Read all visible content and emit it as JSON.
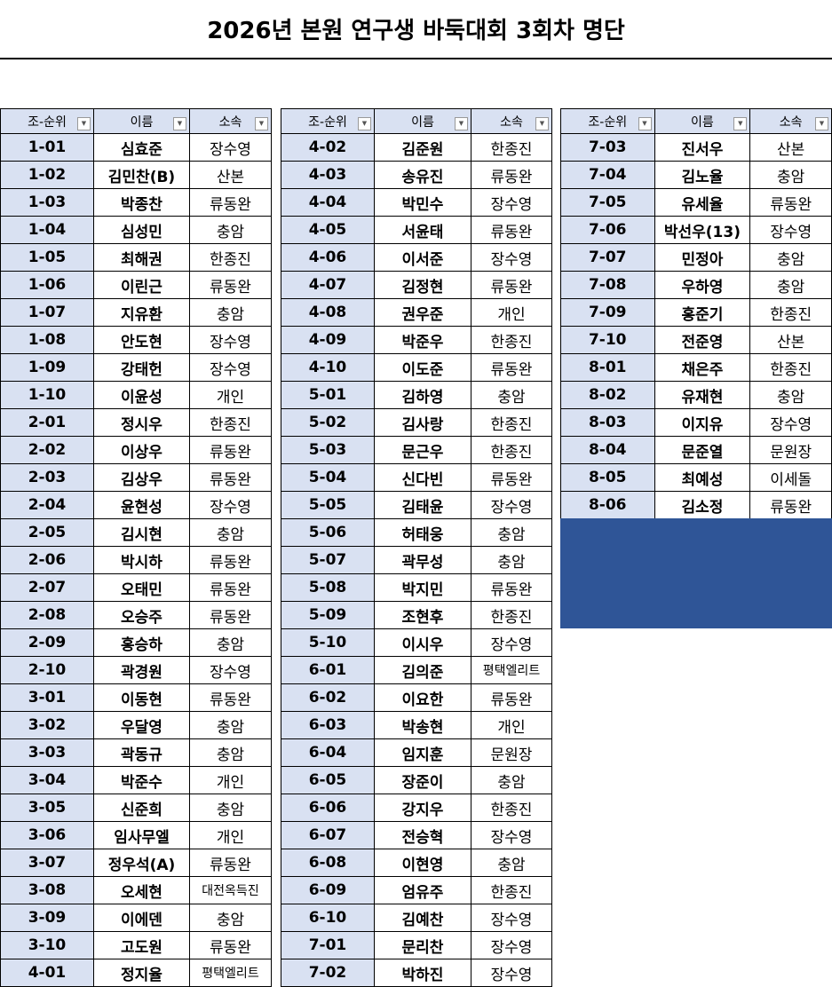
{
  "title": "2026년 본원 연구생 바둑대회 3회차 명단",
  "headers": [
    "조-순위",
    "이름",
    "소속"
  ],
  "filter_icon": "dropdown-arrow-icon",
  "colors": {
    "header_bg": "#d9e1f2",
    "block": "#2f5597"
  },
  "tables": [
    [
      [
        "1-01",
        "심효준",
        "장수영"
      ],
      [
        "1-02",
        "김민찬(B)",
        "산본"
      ],
      [
        "1-03",
        "박종찬",
        "류동완"
      ],
      [
        "1-04",
        "심성민",
        "충암"
      ],
      [
        "1-05",
        "최해권",
        "한종진"
      ],
      [
        "1-06",
        "이린근",
        "류동완"
      ],
      [
        "1-07",
        "지유환",
        "충암"
      ],
      [
        "1-08",
        "안도현",
        "장수영"
      ],
      [
        "1-09",
        "강태헌",
        "장수영"
      ],
      [
        "1-10",
        "이윤성",
        "개인"
      ],
      [
        "2-01",
        "정시우",
        "한종진"
      ],
      [
        "2-02",
        "이상우",
        "류동완"
      ],
      [
        "2-03",
        "김상우",
        "류동완"
      ],
      [
        "2-04",
        "윤현성",
        "장수영"
      ],
      [
        "2-05",
        "김시현",
        "충암"
      ],
      [
        "2-06",
        "박시하",
        "류동완"
      ],
      [
        "2-07",
        "오태민",
        "류동완"
      ],
      [
        "2-08",
        "오승주",
        "류동완"
      ],
      [
        "2-09",
        "홍승하",
        "충암"
      ],
      [
        "2-10",
        "곽경원",
        "장수영"
      ],
      [
        "3-01",
        "이동현",
        "류동완"
      ],
      [
        "3-02",
        "우달영",
        "충암"
      ],
      [
        "3-03",
        "곽동규",
        "충암"
      ],
      [
        "3-04",
        "박준수",
        "개인"
      ],
      [
        "3-05",
        "신준희",
        "충암"
      ],
      [
        "3-06",
        "임사무엘",
        "개인"
      ],
      [
        "3-07",
        "정우석(A)",
        "류동완"
      ],
      [
        "3-08",
        "오세현",
        "대전옥득진"
      ],
      [
        "3-09",
        "이에덴",
        "충암"
      ],
      [
        "3-10",
        "고도원",
        "류동완"
      ],
      [
        "4-01",
        "정지율",
        "평택엘리트"
      ]
    ],
    [
      [
        "4-02",
        "김준원",
        "한종진"
      ],
      [
        "4-03",
        "송유진",
        "류동완"
      ],
      [
        "4-04",
        "박민수",
        "장수영"
      ],
      [
        "4-05",
        "서윤태",
        "류동완"
      ],
      [
        "4-06",
        "이서준",
        "장수영"
      ],
      [
        "4-07",
        "김정현",
        "류동완"
      ],
      [
        "4-08",
        "권우준",
        "개인"
      ],
      [
        "4-09",
        "박준우",
        "한종진"
      ],
      [
        "4-10",
        "이도준",
        "류동완"
      ],
      [
        "5-01",
        "김하영",
        "충암"
      ],
      [
        "5-02",
        "김사랑",
        "한종진"
      ],
      [
        "5-03",
        "문근우",
        "한종진"
      ],
      [
        "5-04",
        "신다빈",
        "류동완"
      ],
      [
        "5-05",
        "김태윤",
        "장수영"
      ],
      [
        "5-06",
        "허태웅",
        "충암"
      ],
      [
        "5-07",
        "곽무성",
        "충암"
      ],
      [
        "5-08",
        "박지민",
        "류동완"
      ],
      [
        "5-09",
        "조현후",
        "한종진"
      ],
      [
        "5-10",
        "이시우",
        "장수영"
      ],
      [
        "6-01",
        "김의준",
        "평택엘리트"
      ],
      [
        "6-02",
        "이요한",
        "류동완"
      ],
      [
        "6-03",
        "박송현",
        "개인"
      ],
      [
        "6-04",
        "임지훈",
        "문원장"
      ],
      [
        "6-05",
        "장준이",
        "충암"
      ],
      [
        "6-06",
        "강지우",
        "한종진"
      ],
      [
        "6-07",
        "전승혁",
        "장수영"
      ],
      [
        "6-08",
        "이현영",
        "충암"
      ],
      [
        "6-09",
        "엄유주",
        "한종진"
      ],
      [
        "6-10",
        "김예찬",
        "장수영"
      ],
      [
        "7-01",
        "문리찬",
        "장수영"
      ],
      [
        "7-02",
        "박하진",
        "장수영"
      ]
    ],
    [
      [
        "7-03",
        "진서우",
        "산본"
      ],
      [
        "7-04",
        "김노율",
        "충암"
      ],
      [
        "7-05",
        "유세율",
        "류동완"
      ],
      [
        "7-06",
        "박선우(13)",
        "장수영"
      ],
      [
        "7-07",
        "민정아",
        "충암"
      ],
      [
        "7-08",
        "우하영",
        "충암"
      ],
      [
        "7-09",
        "홍준기",
        "한종진"
      ],
      [
        "7-10",
        "전준영",
        "산본"
      ],
      [
        "8-01",
        "채은주",
        "한종진"
      ],
      [
        "8-02",
        "유재현",
        "충암"
      ],
      [
        "8-03",
        "이지유",
        "장수영"
      ],
      [
        "8-04",
        "문준열",
        "문원장"
      ],
      [
        "8-05",
        "최예성",
        "이세돌"
      ],
      [
        "8-06",
        "김소정",
        "류동완"
      ]
    ]
  ]
}
